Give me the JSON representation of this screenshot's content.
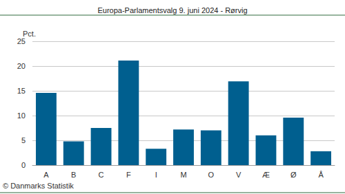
{
  "chart_data": {
    "type": "bar",
    "title": "Europa-Parlamentsvalg 9. juni 2024 - Rørvig",
    "ylabel": "Pct.",
    "annotation": "© Danmarks Statistik",
    "categories": [
      "A",
      "B",
      "C",
      "F",
      "I",
      "M",
      "O",
      "V",
      "Æ",
      "Ø",
      "Å"
    ],
    "values": [
      14.6,
      4.8,
      7.5,
      21.1,
      3.3,
      7.2,
      7.0,
      16.9,
      6.0,
      9.6,
      2.8
    ],
    "color": "#005f8f",
    "ylim": [
      0,
      25
    ],
    "yticks": [
      0,
      5,
      10,
      15,
      20,
      25
    ],
    "grid": true
  }
}
